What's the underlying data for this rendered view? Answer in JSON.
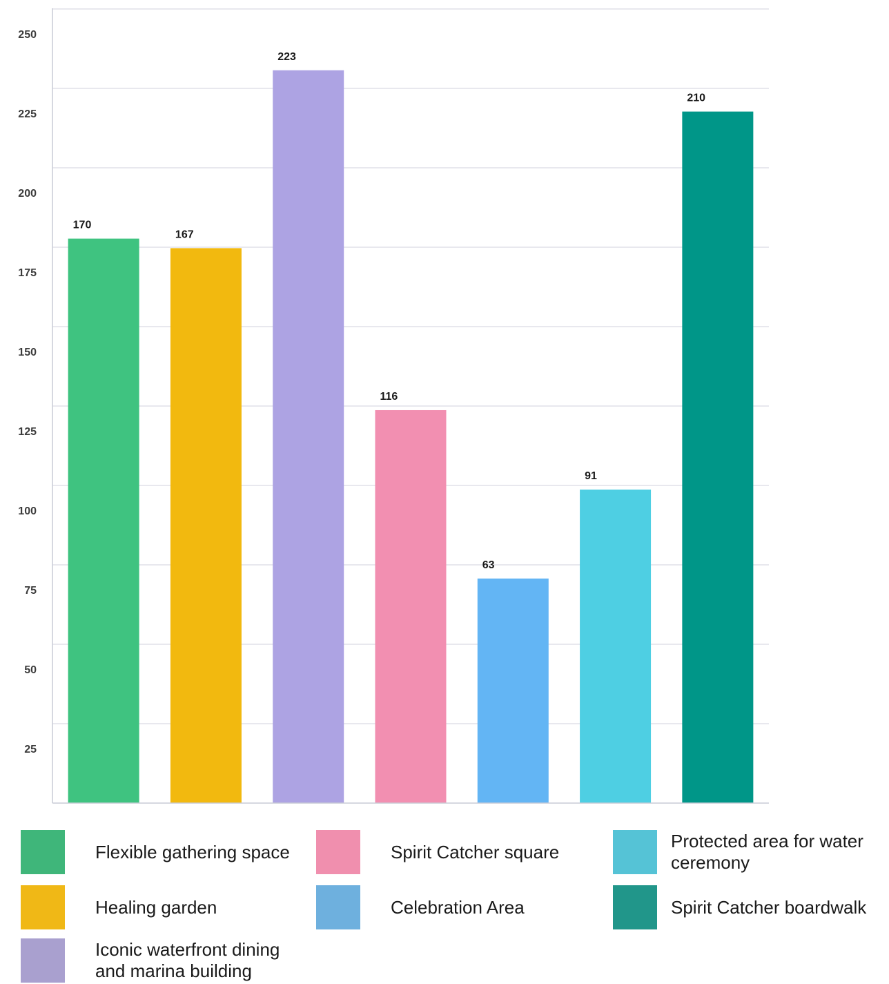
{
  "chart_data": {
    "type": "bar",
    "categories": [
      "Flexible gathering space",
      "Healing garden",
      "Iconic waterfront dining and marina building",
      "Spirit Catcher square",
      "Celebration Area",
      "Protected area for water ceremony",
      "Spirit Catcher boardwalk"
    ],
    "values": [
      170,
      167,
      223,
      116,
      63,
      91,
      210
    ],
    "bar_colors": [
      "#3fc380",
      "#f2b90f",
      "#ada3e3",
      "#f28fb1",
      "#63b5f4",
      "#4ecfe3",
      "#009688"
    ],
    "yticks": [
      25,
      50,
      75,
      100,
      125,
      150,
      175,
      200,
      225,
      250
    ],
    "ylim": [
      0,
      250
    ],
    "grid": true,
    "title": "",
    "xlabel": "",
    "ylabel": ""
  },
  "legend": {
    "placement": "bottom",
    "items": [
      {
        "label": "Flexible gathering space",
        "color": "#3fb67a"
      },
      {
        "label": "Spirit Catcher square",
        "color": "#f08fae"
      },
      {
        "label": "Protected area for water ceremony",
        "color": "#55c3d6"
      },
      {
        "label": "Healing garden",
        "color": "#f0b816"
      },
      {
        "label": "Celebration Area",
        "color": "#6eb0de"
      },
      {
        "label": "Spirit Catcher boardwalk",
        "color": "#21968a"
      },
      {
        "label": "Iconic waterfront dining and marina building",
        "color": "#a9a0cf"
      }
    ]
  }
}
